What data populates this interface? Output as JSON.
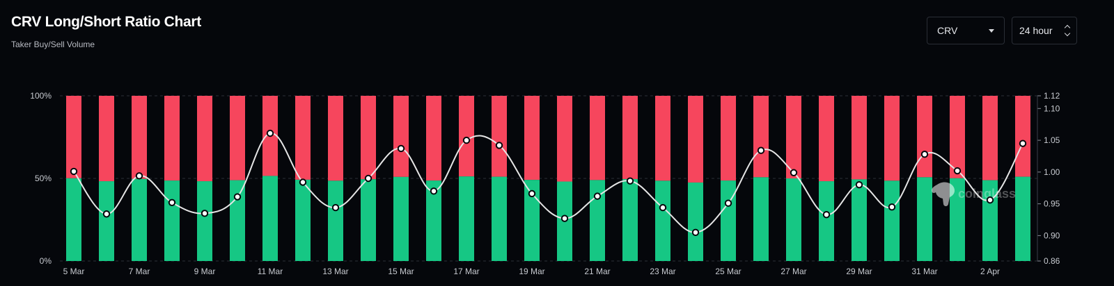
{
  "header": {
    "title": "CRV Long/Short Ratio Chart",
    "subtitle": "Taker Buy/Sell Volume"
  },
  "controls": {
    "coin_label": "CRV",
    "interval_label": "24 hour"
  },
  "watermark": "coinglass",
  "colors": {
    "long": "#16c784",
    "short": "#f6465d",
    "line": "#e6e6e6",
    "background": "#05070b"
  },
  "chart_data": {
    "type": "bar",
    "title": "CRV Long/Short Ratio Chart",
    "subtitle": "Taker Buy/Sell Volume",
    "categories": [
      "5 Mar",
      "6 Mar",
      "7 Mar",
      "8 Mar",
      "9 Mar",
      "10 Mar",
      "11 Mar",
      "12 Mar",
      "13 Mar",
      "14 Mar",
      "15 Mar",
      "16 Mar",
      "17 Mar",
      "18 Mar",
      "19 Mar",
      "20 Mar",
      "21 Mar",
      "22 Mar",
      "23 Mar",
      "24 Mar",
      "25 Mar",
      "26 Mar",
      "27 Mar",
      "28 Mar",
      "29 Mar",
      "30 Mar",
      "31 Mar",
      "1 Apr",
      "2 Apr",
      "3 Apr"
    ],
    "x_tick_labels": [
      "5 Mar",
      "7 Mar",
      "9 Mar",
      "11 Mar",
      "13 Mar",
      "15 Mar",
      "17 Mar",
      "19 Mar",
      "21 Mar",
      "23 Mar",
      "25 Mar",
      "27 Mar",
      "29 Mar",
      "31 Mar",
      "2 Apr"
    ],
    "series": [
      {
        "axis": "left",
        "type": "stacked-bar",
        "values": [
          50.1,
          48.3,
          49.7,
          48.7,
          48.3,
          48.9,
          51.5,
          49.2,
          48.6,
          49.5,
          50.9,
          48.7,
          51.2,
          51.0,
          49.1,
          48.1,
          49.0,
          49.6,
          48.6,
          47.5,
          48.7,
          50.7,
          50.0,
          48.3,
          49.4,
          48.6,
          50.7,
          50.1,
          48.9,
          51.0
        ]
      },
      {
        "axis": "left",
        "type": "stacked-bar",
        "values": [
          49.9,
          51.7,
          50.3,
          51.3,
          51.7,
          51.1,
          48.5,
          50.8,
          51.4,
          50.5,
          49.1,
          51.3,
          48.8,
          49.0,
          50.9,
          51.9,
          51.0,
          50.4,
          51.4,
          52.5,
          51.3,
          49.3,
          50.0,
          51.7,
          50.6,
          51.4,
          49.3,
          49.9,
          51.1,
          49.0
        ]
      },
      {
        "axis": "right",
        "type": "line",
        "values": [
          1.001,
          0.934,
          0.994,
          0.952,
          0.935,
          0.961,
          1.061,
          0.984,
          0.944,
          0.99,
          1.037,
          0.97,
          1.05,
          1.042,
          0.966,
          0.927,
          0.962,
          0.986,
          0.944,
          0.905,
          0.951,
          1.034,
          0.999,
          0.933,
          0.98,
          0.945,
          1.028,
          1.002,
          0.956,
          1.045
        ]
      }
    ],
    "y_left": {
      "ticks": [
        "0%",
        "50%",
        "100%"
      ],
      "range": [
        0,
        100
      ]
    },
    "y_right": {
      "ticks": [
        "0.86",
        "0.90",
        "0.95",
        "1.00",
        "1.05",
        "1.10",
        "1.12"
      ],
      "range": [
        0.86,
        1.12
      ]
    },
    "grid": true,
    "legend": "none"
  }
}
